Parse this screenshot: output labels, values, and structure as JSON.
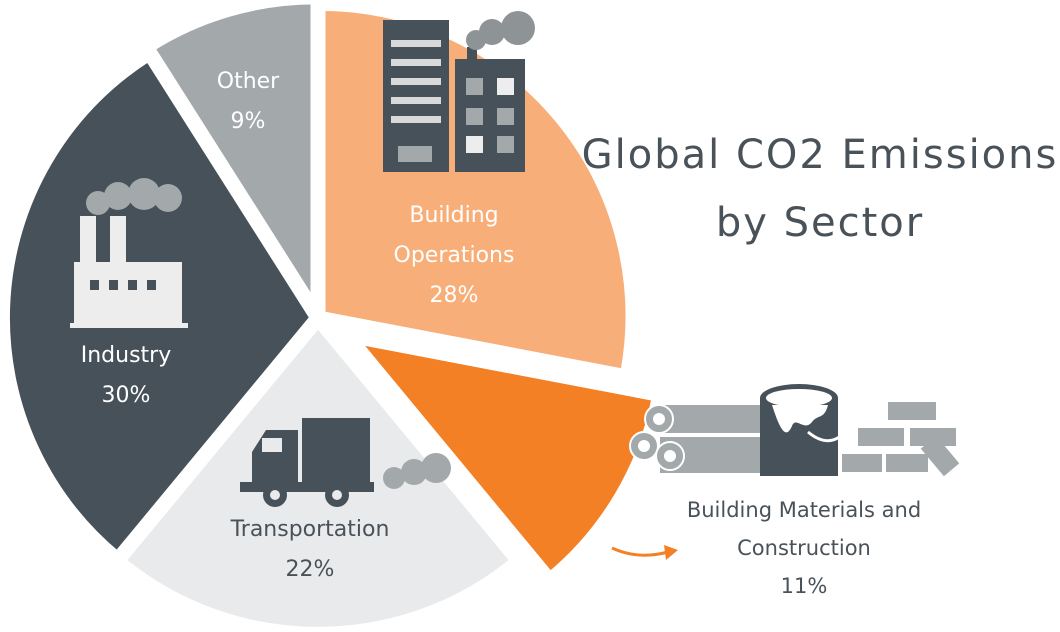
{
  "chart_data": {
    "type": "pie",
    "title": [
      "Global CO2 Emissions",
      "by Sector"
    ],
    "slices": [
      {
        "key": "building-operations",
        "name": [
          "Building",
          "Operations"
        ],
        "value": 28,
        "value_label": "28%",
        "color": "#f7ae78",
        "text_color": "#ffffff"
      },
      {
        "key": "building-materials",
        "name": [
          "Building Materials and",
          "Construction"
        ],
        "value": 11,
        "value_label": "11%",
        "color": "#f48026",
        "text_color": "#4a5259",
        "exploded": true
      },
      {
        "key": "transportation",
        "name": [
          "Transportation"
        ],
        "value": 22,
        "value_label": "22%",
        "color": "#e9eaeb",
        "text_color": "#4a5259"
      },
      {
        "key": "industry",
        "name": [
          "Industry"
        ],
        "value": 30,
        "value_label": "30%",
        "color": "#475159",
        "text_color": "#ffffff"
      },
      {
        "key": "other",
        "name": [
          "Other"
        ],
        "value": 9,
        "value_label": "9%",
        "color": "#a3a8ab",
        "text_color": "#ffffff"
      }
    ],
    "start": "top",
    "direction": "clockwise"
  },
  "icons": {
    "building-operations": "office-building-icon",
    "building-materials": "construction-materials-icon",
    "transportation": "truck-icon",
    "industry": "factory-icon",
    "other": "none"
  },
  "colors": {
    "accent": "#f48026",
    "dark": "#475159",
    "text": "#4a5259"
  }
}
